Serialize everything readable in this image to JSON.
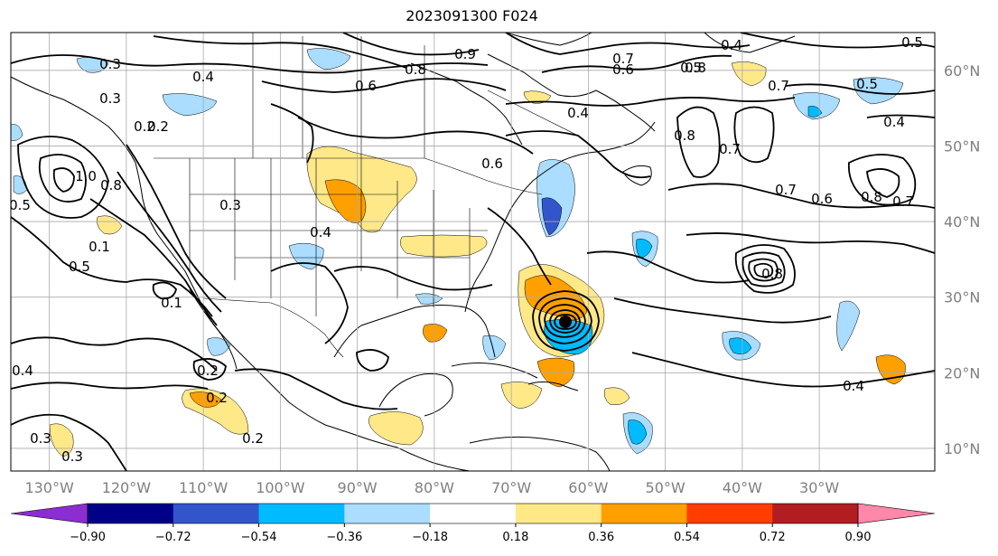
{
  "title": "2023091300 F024",
  "map": {
    "lon_range": [
      -135,
      -15
    ],
    "lat_range": [
      7,
      65
    ],
    "grid_lons": [
      -130,
      -120,
      -110,
      -100,
      -90,
      -80,
      -70,
      -60,
      -50,
      -40,
      -30
    ],
    "grid_lats": [
      10,
      20,
      30,
      40,
      50,
      60
    ],
    "lon_labels": [
      "130°W",
      "120°W",
      "110°W",
      "100°W",
      "90°W",
      "80°W",
      "70°W",
      "60°W",
      "50°W",
      "40°W",
      "30°W"
    ],
    "lat_labels": [
      "10°N",
      "20°N",
      "30°N",
      "40°N",
      "50°N",
      "60°N"
    ],
    "contour_labels": [
      "0.3",
      "0.4",
      "0.6",
      "0.2",
      "0.8",
      "0.9",
      "0.8",
      "0.7",
      "0.6",
      "0.5",
      "0.4",
      "0.5",
      "0.4",
      "0.5",
      "0.7",
      "0.4",
      "0.6",
      "0.3",
      "0.3",
      "0.1",
      "0.1",
      "1.0",
      "0.8",
      "0.8",
      "0.7",
      "0.8",
      "0.7",
      "0.6",
      "0.8",
      "0.7",
      "0.5",
      "0.4",
      "0.2",
      "0.2",
      "0.2",
      "0.4",
      "0.3",
      "0.2",
      "0.3",
      "0.4",
      "0.5"
    ]
  },
  "colorbar": {
    "colors": [
      "#8c2dd1",
      "#000088",
      "#3355cc",
      "#00bbff",
      "#aaddff",
      "#ffffff",
      "#ffe888",
      "#ffa000",
      "#ff3d00",
      "#b21d21",
      "#ff88aa"
    ],
    "tick_labels": [
      "−0.90",
      "−0.72",
      "−0.54",
      "−0.36",
      "−0.18",
      "0.18",
      "0.36",
      "0.54",
      "0.72",
      "0.90"
    ],
    "ticks": [
      -0.9,
      -0.72,
      -0.54,
      -0.36,
      -0.18,
      0.18,
      0.36,
      0.54,
      0.72,
      0.9
    ]
  }
}
